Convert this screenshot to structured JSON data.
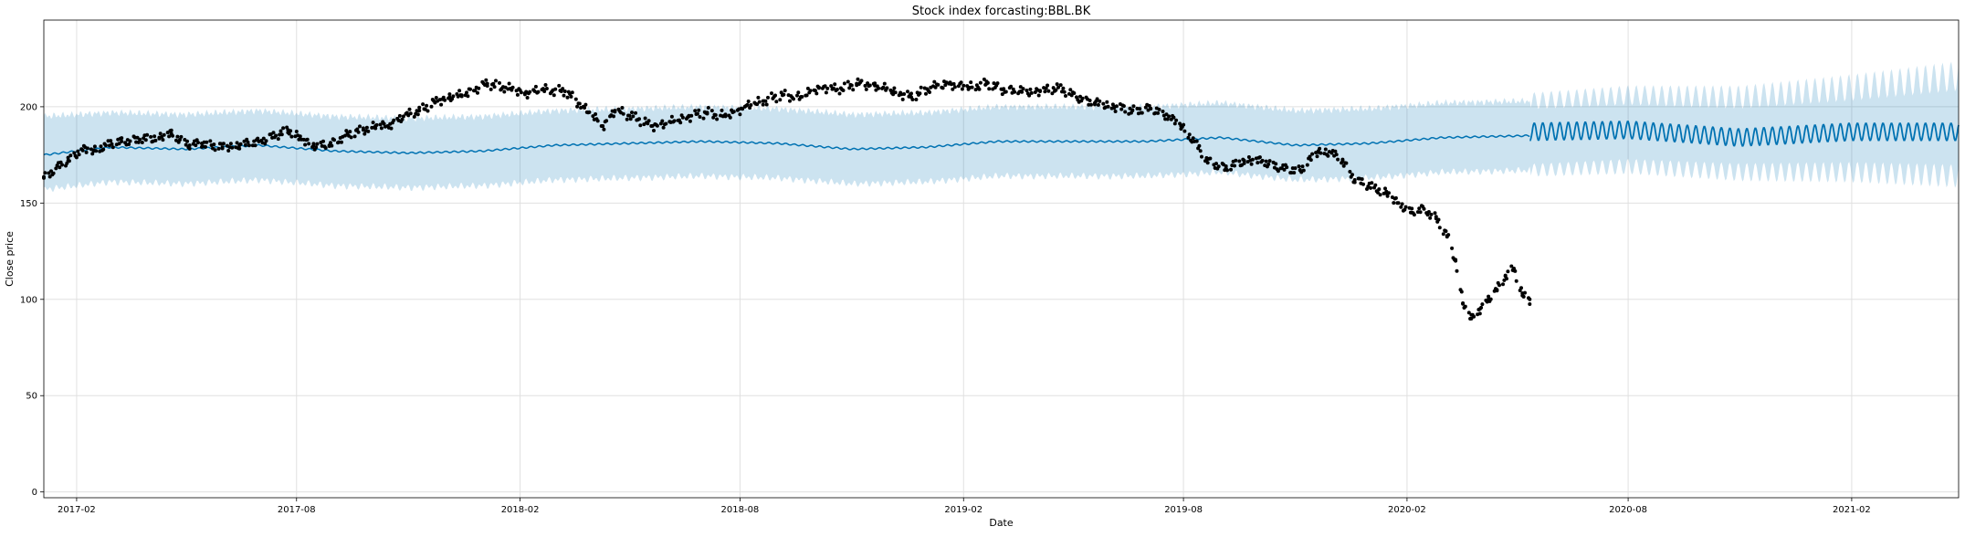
{
  "chart_data": {
    "type": "line",
    "title": "Stock index forcasting:BBL.BK",
    "xlabel": "Date",
    "ylabel": "Close price",
    "ylim": [
      -3,
      245
    ],
    "xlim": [
      "2017-01-05",
      "2021-04-30"
    ],
    "x_ticks": [
      "2017-02",
      "2017-08",
      "2018-02",
      "2018-08",
      "2019-02",
      "2019-08",
      "2020-02",
      "2020-08",
      "2021-02"
    ],
    "y_ticks": [
      0,
      50,
      100,
      150,
      200
    ],
    "grid": true,
    "forecast_start": "2020-05-12",
    "colors": {
      "observed": "#000000",
      "forecast_line": "#0072B2",
      "uncertainty_band": "#0072B2",
      "grid": "#e0e0e0"
    },
    "series": [
      {
        "role": "observed points (black markers)",
        "style": "scatter",
        "x": [
          "2017-01-05",
          "2017-01-15",
          "2017-01-25",
          "2017-02-05",
          "2017-02-15",
          "2017-02-25",
          "2017-03-10",
          "2017-03-25",
          "2017-04-10",
          "2017-04-20",
          "2017-05-05",
          "2017-05-15",
          "2017-06-01",
          "2017-06-15",
          "2017-07-01",
          "2017-07-15",
          "2017-07-25",
          "2017-08-05",
          "2017-08-15",
          "2017-08-28",
          "2017-09-10",
          "2017-09-25",
          "2017-10-05",
          "2017-10-15",
          "2017-10-28",
          "2017-11-10",
          "2017-11-25",
          "2017-12-05",
          "2017-12-15",
          "2018-01-05",
          "2018-01-20",
          "2018-02-05",
          "2018-02-20",
          "2018-03-10",
          "2018-03-25",
          "2018-04-10",
          "2018-04-20",
          "2018-05-05",
          "2018-05-20",
          "2018-06-05",
          "2018-06-20",
          "2018-07-05",
          "2018-07-20",
          "2018-08-05",
          "2018-08-20",
          "2018-09-05",
          "2018-09-20",
          "2018-10-05",
          "2018-10-20",
          "2018-11-05",
          "2018-11-20",
          "2018-12-05",
          "2018-12-20",
          "2019-01-05",
          "2019-01-20",
          "2019-02-05",
          "2019-02-20",
          "2019-03-05",
          "2019-03-20",
          "2019-04-05",
          "2019-04-20",
          "2019-05-05",
          "2019-05-20",
          "2019-06-05",
          "2019-06-20",
          "2019-07-05",
          "2019-07-20",
          "2019-07-30",
          "2019-08-10",
          "2019-08-20",
          "2019-09-05",
          "2019-09-20",
          "2019-10-05",
          "2019-10-20",
          "2019-11-05",
          "2019-11-20",
          "2019-12-01",
          "2019-12-10",
          "2019-12-20",
          "2020-01-05",
          "2020-01-15",
          "2020-01-25",
          "2020-02-05",
          "2020-02-15",
          "2020-02-25",
          "2020-03-05",
          "2020-03-12",
          "2020-03-18",
          "2020-03-25",
          "2020-04-01",
          "2020-04-08",
          "2020-04-15",
          "2020-04-22",
          "2020-04-29",
          "2020-05-06",
          "2020-05-12"
        ],
        "y": [
          163,
          168,
          172,
          178,
          177,
          180,
          182,
          183,
          184,
          186,
          180,
          181,
          179,
          180,
          182,
          185,
          188,
          183,
          180,
          180,
          185,
          188,
          190,
          190,
          195,
          198,
          203,
          205,
          206,
          212,
          210,
          207,
          209,
          208,
          200,
          190,
          198,
          195,
          190,
          192,
          195,
          197,
          195,
          200,
          203,
          206,
          205,
          210,
          209,
          212,
          211,
          208,
          205,
          210,
          212,
          210,
          212,
          209,
          208,
          208,
          210,
          205,
          202,
          200,
          198,
          199,
          195,
          190,
          182,
          172,
          168,
          172,
          172,
          168,
          167,
          177,
          176,
          172,
          162,
          158,
          155,
          150,
          145,
          147,
          142,
          133,
          120,
          98,
          90,
          95,
          100,
          105,
          112,
          116,
          102,
          100
        ]
      },
      {
        "role": "forecast line (yhat)",
        "style": "line",
        "x": [
          "2017-01-05",
          "2017-03-01",
          "2017-05-01",
          "2017-07-01",
          "2017-09-01",
          "2017-11-01",
          "2018-01-01",
          "2018-03-01",
          "2018-05-01",
          "2018-07-01",
          "2018-09-01",
          "2018-11-01",
          "2019-01-01",
          "2019-03-01",
          "2019-05-01",
          "2019-07-01",
          "2019-09-01",
          "2019-11-01",
          "2020-01-01",
          "2020-03-01",
          "2020-05-12"
        ],
        "y": [
          175,
          179,
          178,
          180,
          177,
          176,
          177,
          180,
          181,
          182,
          181,
          178,
          179,
          182,
          182,
          182,
          184,
          180,
          181,
          184,
          185
        ]
      },
      {
        "role": "future forecast baseline (weekly-oscillating line)",
        "style": "oscillating-line",
        "x": [
          "2020-05-12",
          "2020-08-01",
          "2020-11-01",
          "2021-02-01",
          "2021-04-30"
        ],
        "y": [
          187,
          188,
          184,
          187,
          187
        ],
        "amplitude": 4.5,
        "period_days": 7
      },
      {
        "role": "uncertainty interval (yhat_lower / yhat_upper)",
        "style": "band",
        "x": [
          "2017-01-05",
          "2017-03-01",
          "2017-05-01",
          "2017-07-01",
          "2017-09-01",
          "2017-11-01",
          "2018-01-01",
          "2018-03-01",
          "2018-05-01",
          "2018-07-01",
          "2018-09-01",
          "2018-11-01",
          "2019-01-01",
          "2019-03-01",
          "2019-05-01",
          "2019-07-01",
          "2019-09-01",
          "2019-11-01",
          "2020-01-01",
          "2020-03-01",
          "2020-05-12",
          "2020-08-01",
          "2020-11-01",
          "2021-02-01",
          "2021-04-30"
        ],
        "lower": [
          157,
          161,
          160,
          162,
          159,
          158,
          159,
          162,
          163,
          164,
          163,
          160,
          161,
          164,
          164,
          164,
          166,
          162,
          163,
          166,
          167,
          169,
          166,
          166,
          164
        ],
        "upper": [
          195,
          197,
          196,
          198,
          195,
          194,
          195,
          198,
          199,
          200,
          199,
          196,
          197,
          200,
          200,
          200,
          202,
          198,
          199,
          202,
          203,
          206,
          205,
          210,
          216
        ]
      }
    ]
  }
}
